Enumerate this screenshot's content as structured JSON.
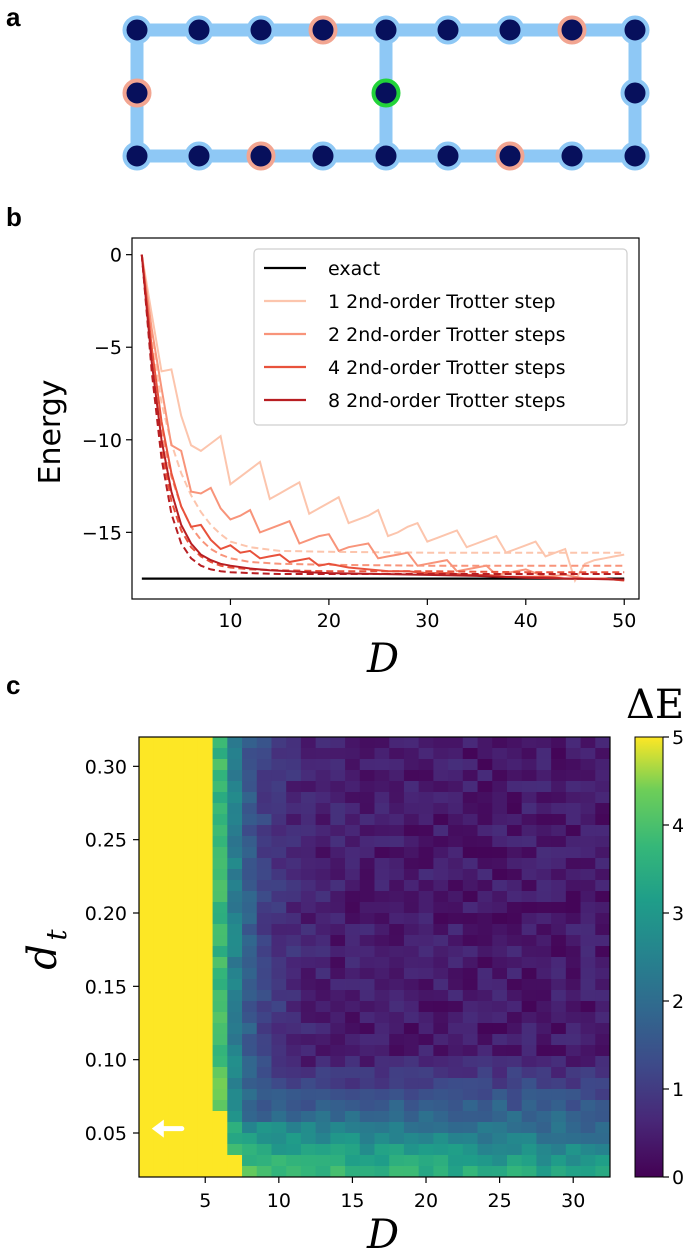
{
  "panels": {
    "a": "a",
    "b": "b",
    "c": "c"
  },
  "colors": {
    "lattice_bond": "#8ec8f5",
    "site_fill": "#07105c",
    "site_ring_default": "#8ec8f5",
    "site_ring_salmon": "#f2a591",
    "site_ring_green": "#22d33a",
    "arrow": "#ffffff"
  },
  "lattice": {
    "rows": [
      {
        "row": "top",
        "columns": 9,
        "ring": [
          "default",
          "default",
          "default",
          "salmon",
          "default",
          "default",
          "default",
          "salmon",
          "default"
        ]
      },
      {
        "row": "middle",
        "columns": [
          0,
          4,
          8
        ],
        "ring": [
          "salmon",
          "green",
          "default"
        ]
      },
      {
        "row": "bottom",
        "columns": 9,
        "ring": [
          "default",
          "default",
          "salmon",
          "default",
          "default",
          "default",
          "salmon",
          "default",
          "default"
        ]
      }
    ]
  },
  "chart_data": [
    {
      "type": "line",
      "panel": "b",
      "xlabel": "D",
      "ylabel": "Energy",
      "xlim": [
        0,
        51.5
      ],
      "ylim": [
        -18.6,
        0.9
      ],
      "xticks": [
        10,
        20,
        30,
        40,
        50
      ],
      "yticks": [
        0,
        -5,
        -10,
        -15
      ],
      "ytick_labels": [
        "0",
        "−5",
        "−10",
        "−15"
      ],
      "legend_position": "upper right",
      "exact": {
        "name": "exact",
        "value": -17.5,
        "color": "#000000"
      },
      "series": [
        {
          "name": "1 2nd-order Trotter step",
          "color": "#fcc5ad",
          "solid": [
            [
              1,
              0
            ],
            [
              2,
              -3.2
            ],
            [
              3,
              -6.3
            ],
            [
              4,
              -6.2
            ],
            [
              5,
              -8.7
            ],
            [
              6,
              -10.3
            ],
            [
              7,
              -10.6
            ],
            [
              8,
              -10.2
            ],
            [
              9,
              -9.8
            ],
            [
              10,
              -12.4
            ],
            [
              11,
              -12.0
            ],
            [
              12,
              -11.6
            ],
            [
              13,
              -11.2
            ],
            [
              14,
              -13.2
            ],
            [
              15,
              -12.9
            ],
            [
              16,
              -12.6
            ],
            [
              17,
              -12.3
            ],
            [
              18,
              -14.0
            ],
            [
              19,
              -13.7
            ],
            [
              20,
              -13.4
            ],
            [
              21,
              -13.1
            ],
            [
              22,
              -14.5
            ],
            [
              23,
              -14.3
            ],
            [
              24,
              -14.1
            ],
            [
              25,
              -13.8
            ],
            [
              26,
              -15.2
            ],
            [
              27,
              -15.0
            ],
            [
              28,
              -14.7
            ],
            [
              29,
              -14.5
            ],
            [
              30,
              -15.5
            ],
            [
              31,
              -15.3
            ],
            [
              32,
              -15.1
            ],
            [
              33,
              -14.9
            ],
            [
              34,
              -15.8
            ],
            [
              35,
              -15.6
            ],
            [
              36,
              -15.4
            ],
            [
              37,
              -15.2
            ],
            [
              38,
              -16.1
            ],
            [
              39,
              -15.9
            ],
            [
              40,
              -15.7
            ],
            [
              41,
              -15.5
            ],
            [
              42,
              -16.3
            ],
            [
              43,
              -16.1
            ],
            [
              44,
              -15.9
            ],
            [
              45,
              -17.6
            ],
            [
              46,
              -16.7
            ],
            [
              47,
              -16.5
            ],
            [
              48,
              -16.4
            ],
            [
              49,
              -16.3
            ],
            [
              50,
              -16.2
            ]
          ],
          "dashed": [
            [
              1,
              0
            ],
            [
              2,
              -4.5
            ],
            [
              3,
              -8.0
            ],
            [
              4,
              -10.2
            ],
            [
              5,
              -11.8
            ],
            [
              6,
              -13.0
            ],
            [
              7,
              -13.9
            ],
            [
              8,
              -14.6
            ],
            [
              9,
              -15.1
            ],
            [
              10,
              -15.5
            ],
            [
              12,
              -15.8
            ],
            [
              15,
              -16.0
            ],
            [
              20,
              -16.05
            ],
            [
              30,
              -16.1
            ],
            [
              40,
              -16.1
            ],
            [
              50,
              -16.1
            ]
          ]
        },
        {
          "name": "2 2nd-order Trotter steps",
          "color": "#f8947a",
          "solid": [
            [
              1,
              0
            ],
            [
              2,
              -4.0
            ],
            [
              3,
              -7.2
            ],
            [
              4,
              -10.3
            ],
            [
              5,
              -10.6
            ],
            [
              6,
              -12.8
            ],
            [
              7,
              -12.9
            ],
            [
              8,
              -12.6
            ],
            [
              9,
              -13.7
            ],
            [
              10,
              -14.3
            ],
            [
              11,
              -14.1
            ],
            [
              12,
              -13.8
            ],
            [
              13,
              -15.0
            ],
            [
              14,
              -14.8
            ],
            [
              15,
              -14.6
            ],
            [
              16,
              -14.4
            ],
            [
              17,
              -15.6
            ],
            [
              18,
              -15.4
            ],
            [
              19,
              -15.2
            ],
            [
              20,
              -15.1
            ],
            [
              21,
              -16.0
            ],
            [
              22,
              -15.8
            ],
            [
              23,
              -15.7
            ],
            [
              24,
              -15.6
            ],
            [
              25,
              -16.4
            ],
            [
              26,
              -16.3
            ],
            [
              27,
              -16.2
            ],
            [
              28,
              -16.1
            ],
            [
              29,
              -16.8
            ],
            [
              30,
              -16.7
            ],
            [
              31,
              -16.6
            ],
            [
              32,
              -16.5
            ],
            [
              33,
              -17.1
            ],
            [
              34,
              -17.0
            ],
            [
              35,
              -16.9
            ],
            [
              36,
              -16.8
            ],
            [
              37,
              -17.3
            ],
            [
              38,
              -17.2
            ],
            [
              39,
              -17.1
            ],
            [
              40,
              -17.0
            ],
            [
              42,
              -17.4
            ],
            [
              44,
              -17.3
            ],
            [
              46,
              -17.5
            ],
            [
              48,
              -17.5
            ],
            [
              50,
              -17.6
            ]
          ],
          "dashed": [
            [
              1,
              0
            ],
            [
              2,
              -5.5
            ],
            [
              3,
              -9.5
            ],
            [
              4,
              -12.0
            ],
            [
              5,
              -13.6
            ],
            [
              6,
              -14.7
            ],
            [
              7,
              -15.4
            ],
            [
              8,
              -15.9
            ],
            [
              9,
              -16.2
            ],
            [
              10,
              -16.4
            ],
            [
              12,
              -16.6
            ],
            [
              15,
              -16.7
            ],
            [
              20,
              -16.75
            ],
            [
              30,
              -16.8
            ],
            [
              40,
              -16.8
            ],
            [
              50,
              -16.8
            ]
          ]
        },
        {
          "name": "4 2nd-order Trotter steps",
          "color": "#e8523c",
          "solid": [
            [
              1,
              0
            ],
            [
              2,
              -5.0
            ],
            [
              3,
              -9.0
            ],
            [
              4,
              -11.8
            ],
            [
              5,
              -13.6
            ],
            [
              6,
              -14.7
            ],
            [
              7,
              -14.6
            ],
            [
              8,
              -15.4
            ],
            [
              9,
              -15.9
            ],
            [
              10,
              -15.7
            ],
            [
              11,
              -16.1
            ],
            [
              12,
              -16.0
            ],
            [
              13,
              -16.4
            ],
            [
              14,
              -16.3
            ],
            [
              15,
              -16.2
            ],
            [
              16,
              -16.6
            ],
            [
              17,
              -16.5
            ],
            [
              18,
              -16.4
            ],
            [
              19,
              -16.8
            ],
            [
              20,
              -16.7
            ],
            [
              22,
              -16.9
            ],
            [
              24,
              -17.0
            ],
            [
              26,
              -17.1
            ],
            [
              28,
              -17.1
            ],
            [
              30,
              -17.2
            ],
            [
              32,
              -17.2
            ],
            [
              34,
              -17.3
            ],
            [
              36,
              -17.3
            ],
            [
              38,
              -17.4
            ],
            [
              40,
              -17.4
            ],
            [
              42,
              -17.4
            ],
            [
              44,
              -17.5
            ],
            [
              46,
              -17.5
            ],
            [
              48,
              -17.5
            ],
            [
              50,
              -17.6
            ]
          ],
          "dashed": [
            [
              1,
              0
            ],
            [
              2,
              -6.0
            ],
            [
              3,
              -10.5
            ],
            [
              4,
              -13.3
            ],
            [
              5,
              -14.9
            ],
            [
              6,
              -15.8
            ],
            [
              7,
              -16.3
            ],
            [
              8,
              -16.6
            ],
            [
              9,
              -16.8
            ],
            [
              10,
              -16.9
            ],
            [
              12,
              -17.0
            ],
            [
              15,
              -17.05
            ],
            [
              20,
              -17.1
            ],
            [
              30,
              -17.1
            ],
            [
              40,
              -17.15
            ],
            [
              50,
              -17.15
            ]
          ]
        },
        {
          "name": "8 2nd-order Trotter steps",
          "color": "#b81e22",
          "solid": [
            [
              1,
              0
            ],
            [
              2,
              -5.8
            ],
            [
              3,
              -10.0
            ],
            [
              4,
              -12.8
            ],
            [
              5,
              -14.6
            ],
            [
              6,
              -15.6
            ],
            [
              7,
              -16.2
            ],
            [
              8,
              -16.5
            ],
            [
              9,
              -16.7
            ],
            [
              10,
              -16.8
            ],
            [
              12,
              -16.95
            ],
            [
              14,
              -17.05
            ],
            [
              16,
              -17.1
            ],
            [
              18,
              -17.15
            ],
            [
              20,
              -17.2
            ],
            [
              25,
              -17.25
            ],
            [
              30,
              -17.3
            ],
            [
              35,
              -17.35
            ],
            [
              40,
              -17.45
            ],
            [
              45,
              -17.5
            ],
            [
              50,
              -17.55
            ]
          ],
          "dashed": [
            [
              1,
              0
            ],
            [
              2,
              -6.3
            ],
            [
              3,
              -11.0
            ],
            [
              4,
              -14.0
            ],
            [
              5,
              -15.6
            ],
            [
              6,
              -16.4
            ],
            [
              7,
              -16.8
            ],
            [
              8,
              -17.0
            ],
            [
              9,
              -17.1
            ],
            [
              10,
              -17.15
            ],
            [
              12,
              -17.2
            ],
            [
              15,
              -17.25
            ],
            [
              20,
              -17.25
            ],
            [
              30,
              -17.25
            ],
            [
              40,
              -17.25
            ],
            [
              50,
              -17.25
            ]
          ]
        }
      ]
    },
    {
      "type": "heatmap",
      "panel": "c",
      "xlabel": "D",
      "ylabel": "d_t",
      "colorbar_label": "ΔE",
      "colormap": "viridis",
      "value_range": [
        0,
        5
      ],
      "colorbar_ticks": [
        0,
        1,
        2,
        3,
        4,
        5
      ],
      "x_range": [
        1,
        32
      ],
      "y_range": [
        0.02,
        0.32
      ],
      "xticks": [
        5,
        10,
        15,
        20,
        25,
        30
      ],
      "yticks": [
        "0.05",
        "0.10",
        "0.15",
        "0.20",
        "0.25",
        "0.30"
      ],
      "description_of_values": "Yellow (ΔE≈5) for small D; boundary near D≈5–7 at large d_t curving to larger D at small d_t; purple (ΔE≈0–0.5) region at large D and d_t≈0.10–0.30; green/teal band along the bottom rows (d_t≈0.02–0.06).",
      "arrow": {
        "points_to": "left",
        "D": 3,
        "d_t": 0.053
      }
    }
  ],
  "axes_text": {
    "b_xlabel": "D",
    "b_ylabel": "Energy",
    "c_xlabel": "D",
    "c_ylabel_main": "d",
    "c_ylabel_sub": "t",
    "c_colorbar_label": "ΔE"
  }
}
